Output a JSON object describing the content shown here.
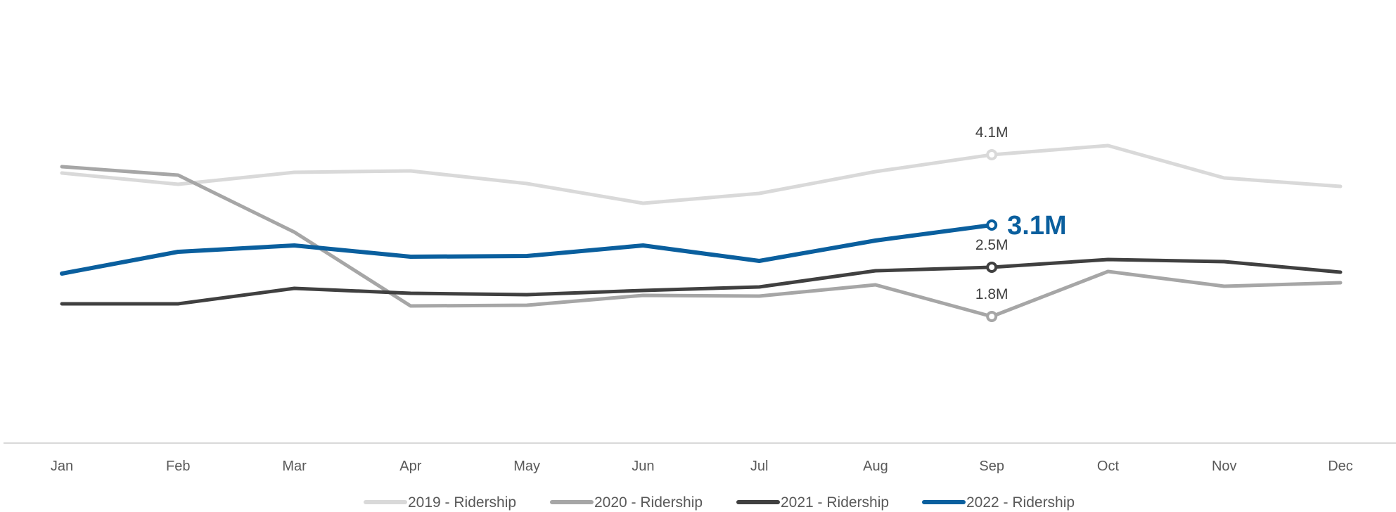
{
  "chart_data": {
    "type": "line",
    "title": "",
    "xlabel": "",
    "ylabel": "",
    "categories": [
      "Jan",
      "Feb",
      "Mar",
      "Apr",
      "May",
      "Jun",
      "Jul",
      "Aug",
      "Sep",
      "Oct",
      "Nov",
      "Dec"
    ],
    "ylim": [
      0,
      4.5
    ],
    "grid": false,
    "legend_position": "bottom",
    "series": [
      {
        "name": "2019 - Ridership",
        "color": "#d9d9d9",
        "values": [
          3.84,
          3.68,
          3.85,
          3.87,
          3.69,
          3.41,
          3.55,
          3.86,
          4.1,
          4.23,
          3.77,
          3.65
        ],
        "label_point": {
          "index": 8,
          "text": "4.1M"
        }
      },
      {
        "name": "2020 - Ridership",
        "color": "#a6a6a6",
        "values": [
          3.93,
          3.81,
          3.0,
          1.95,
          1.96,
          2.1,
          2.09,
          2.25,
          1.8,
          2.44,
          2.23,
          2.28
        ],
        "label_point": {
          "index": 8,
          "text": "1.8M"
        }
      },
      {
        "name": "2021 - Ridership",
        "color": "#404040",
        "values": [
          1.98,
          1.98,
          2.2,
          2.13,
          2.11,
          2.17,
          2.22,
          2.45,
          2.5,
          2.61,
          2.58,
          2.43
        ],
        "label_point": {
          "index": 8,
          "text": "2.5M"
        }
      },
      {
        "name": "2022 - Ridership",
        "color": "#0a5f9e",
        "values": [
          2.41,
          2.72,
          2.81,
          2.65,
          2.66,
          2.81,
          2.59,
          2.88,
          3.1,
          null,
          null,
          null
        ],
        "label_point": {
          "index": 8,
          "text": "3.1M"
        }
      }
    ]
  }
}
